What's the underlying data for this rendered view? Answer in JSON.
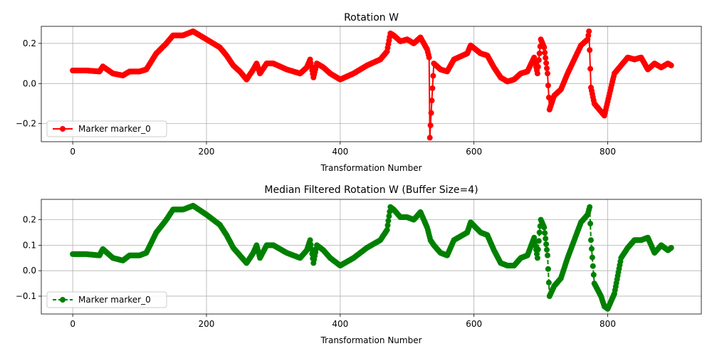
{
  "chart_data": [
    {
      "type": "line",
      "title": "Rotation W",
      "xlabel": "Transformation Number",
      "ylabel": "",
      "xlim": [
        -47,
        940
      ],
      "ylim": [
        -0.29,
        0.285
      ],
      "xticks": [
        0,
        200,
        400,
        600,
        800
      ],
      "xtick_labels": [
        "0",
        "200",
        "400",
        "600",
        "800"
      ],
      "yticks": [
        -0.2,
        0.0,
        0.2
      ],
      "ytick_labels": [
        "−0.2",
        "0.0",
        "0.2"
      ],
      "grid": true,
      "legend_position": "lower-left",
      "color": "#ff0000",
      "line_style": "solid",
      "marker": "circle",
      "series": [
        {
          "name": "Marker marker_0",
          "x": [
            0,
            20,
            40,
            45,
            60,
            75,
            85,
            100,
            110,
            125,
            140,
            150,
            165,
            180,
            200,
            220,
            230,
            240,
            250,
            260,
            270,
            275,
            280,
            290,
            300,
            320,
            340,
            350,
            355,
            360,
            365,
            375,
            385,
            400,
            420,
            440,
            460,
            470,
            475,
            480,
            490,
            500,
            510,
            520,
            530,
            533,
            534,
            540,
            550,
            560,
            570,
            590,
            595,
            610,
            620,
            630,
            640,
            650,
            660,
            670,
            680,
            690,
            695,
            698,
            700,
            705,
            710,
            713,
            720,
            730,
            740,
            750,
            760,
            770,
            772,
            775,
            780,
            790,
            795,
            800,
            810,
            820,
            830,
            840,
            850,
            860,
            870,
            880,
            890,
            895
          ],
          "y": [
            0.065,
            0.065,
            0.06,
            0.085,
            0.05,
            0.04,
            0.06,
            0.06,
            0.07,
            0.15,
            0.2,
            0.24,
            0.24,
            0.26,
            0.22,
            0.18,
            0.14,
            0.09,
            0.06,
            0.02,
            0.07,
            0.1,
            0.05,
            0.1,
            0.1,
            0.07,
            0.05,
            0.08,
            0.12,
            0.03,
            0.1,
            0.08,
            0.05,
            0.02,
            0.05,
            0.09,
            0.12,
            0.16,
            0.25,
            0.24,
            0.21,
            0.22,
            0.2,
            0.23,
            0.17,
            0.13,
            -0.27,
            0.1,
            0.07,
            0.06,
            0.12,
            0.15,
            0.19,
            0.15,
            0.14,
            0.08,
            0.03,
            0.01,
            0.02,
            0.05,
            0.06,
            0.13,
            0.05,
            0.15,
            0.22,
            0.18,
            0.05,
            -0.13,
            -0.06,
            -0.03,
            0.05,
            0.12,
            0.19,
            0.22,
            0.26,
            -0.02,
            -0.1,
            -0.14,
            -0.16,
            -0.09,
            0.05,
            0.09,
            0.13,
            0.12,
            0.13,
            0.07,
            0.1,
            0.08,
            0.1,
            0.09
          ]
        }
      ]
    },
    {
      "type": "line",
      "title": "Median Filtered Rotation W (Buffer Size=4)",
      "xlabel": "Transformation Number",
      "ylabel": "",
      "xlim": [
        -47,
        940
      ],
      "ylim": [
        -0.17,
        0.28
      ],
      "xticks": [
        0,
        200,
        400,
        600,
        800
      ],
      "xtick_labels": [
        "0",
        "200",
        "400",
        "600",
        "800"
      ],
      "yticks": [
        -0.1,
        0.0,
        0.1,
        0.2
      ],
      "ytick_labels": [
        "−0.1",
        "0.0",
        "0.1",
        "0.2"
      ],
      "grid": true,
      "legend_position": "lower-left",
      "color": "#008000",
      "line_style": "dashed",
      "marker": "circle",
      "series": [
        {
          "name": "Marker marker_0",
          "x": [
            0,
            20,
            40,
            45,
            60,
            75,
            85,
            100,
            110,
            125,
            140,
            150,
            165,
            180,
            200,
            220,
            230,
            240,
            250,
            260,
            270,
            275,
            280,
            290,
            300,
            320,
            340,
            350,
            355,
            360,
            365,
            375,
            385,
            400,
            420,
            440,
            460,
            470,
            475,
            480,
            490,
            500,
            510,
            520,
            530,
            535,
            540,
            550,
            560,
            570,
            590,
            595,
            610,
            620,
            630,
            640,
            650,
            660,
            670,
            680,
            690,
            695,
            698,
            700,
            705,
            710,
            713,
            720,
            730,
            740,
            750,
            760,
            770,
            773,
            775,
            780,
            790,
            795,
            800,
            810,
            820,
            830,
            840,
            850,
            860,
            870,
            880,
            890,
            895
          ],
          "y": [
            0.065,
            0.065,
            0.06,
            0.085,
            0.05,
            0.04,
            0.06,
            0.06,
            0.07,
            0.15,
            0.2,
            0.24,
            0.24,
            0.255,
            0.22,
            0.18,
            0.14,
            0.09,
            0.06,
            0.03,
            0.07,
            0.1,
            0.05,
            0.1,
            0.1,
            0.07,
            0.05,
            0.08,
            0.12,
            0.03,
            0.1,
            0.08,
            0.05,
            0.02,
            0.05,
            0.09,
            0.12,
            0.16,
            0.25,
            0.24,
            0.21,
            0.21,
            0.2,
            0.23,
            0.17,
            0.12,
            0.1,
            0.07,
            0.06,
            0.12,
            0.15,
            0.19,
            0.15,
            0.14,
            0.08,
            0.03,
            0.02,
            0.02,
            0.05,
            0.06,
            0.13,
            0.05,
            0.15,
            0.2,
            0.17,
            0.06,
            -0.1,
            -0.06,
            -0.03,
            0.05,
            0.12,
            0.19,
            0.22,
            0.25,
            0.12,
            -0.05,
            -0.1,
            -0.14,
            -0.15,
            -0.09,
            0.05,
            0.09,
            0.12,
            0.12,
            0.13,
            0.07,
            0.1,
            0.08,
            0.09
          ]
        }
      ]
    }
  ]
}
